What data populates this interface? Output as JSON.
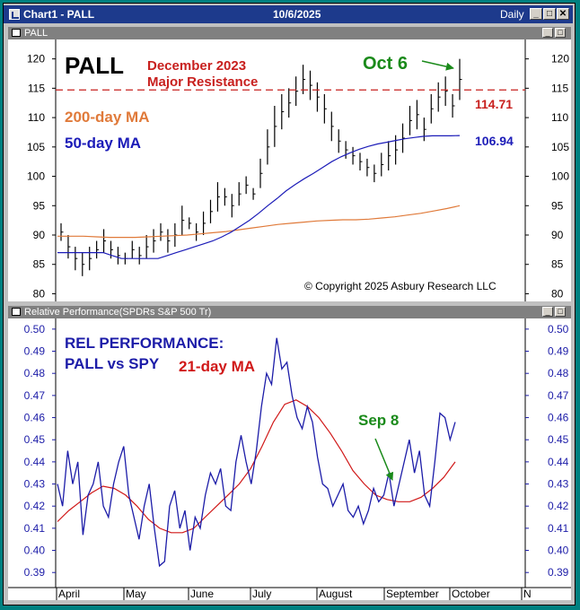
{
  "window": {
    "title": "Chart1 - PALL",
    "date": "10/6/2025",
    "period": "Daily",
    "buttons": [
      "_",
      "□",
      "✕"
    ]
  },
  "colors": {
    "title_bar": "#1d3a8c",
    "price_bars": "#000000",
    "ma50": "#1c1cb8",
    "ma200": "#e07a3a",
    "resistance": "#c8201e",
    "rel_perf": "#1c1ca8",
    "rel_ma": "#d01818",
    "green": "#1a8a1a"
  },
  "chart_data": [
    {
      "type": "bar",
      "panel": "PALL",
      "title": "PALL",
      "ylim": [
        79,
        123
      ],
      "y_ticks": [
        120,
        115,
        110,
        105,
        100,
        95,
        90,
        85,
        80
      ],
      "annotations": {
        "resistance_title": "December 2023",
        "resistance_subtitle": "Major Resistance",
        "ma200_label": "200-day MA",
        "ma50_label": "50-day MA",
        "oct6_label": "Oct 6",
        "resistance_value": "114.71",
        "ma50_value": "106.94",
        "copyright": "© Copyright 2025 Asbury Research LLC"
      },
      "resistance_level": 114.71,
      "series": [
        {
          "name": "PALL",
          "kind": "hl",
          "values": [
            [
              89,
              92
            ],
            [
              86,
              90
            ],
            [
              84,
              88
            ],
            [
              83,
              87
            ],
            [
              84,
              88
            ],
            [
              86,
              89
            ],
            [
              87,
              91
            ],
            [
              86,
              89
            ],
            [
              85,
              88
            ],
            [
              85,
              87
            ],
            [
              86,
              89
            ],
            [
              85,
              88
            ],
            [
              86,
              90
            ],
            [
              87,
              91
            ],
            [
              89,
              92
            ],
            [
              87,
              91
            ],
            [
              88,
              92
            ],
            [
              90,
              95
            ],
            [
              91,
              93
            ],
            [
              89,
              92
            ],
            [
              90,
              94
            ],
            [
              92,
              96
            ],
            [
              94,
              99
            ],
            [
              95,
              98
            ],
            [
              93,
              97
            ],
            [
              95,
              99
            ],
            [
              97,
              100
            ],
            [
              96,
              98
            ],
            [
              98,
              103
            ],
            [
              102,
              108
            ],
            [
              105,
              112
            ],
            [
              108,
              114
            ],
            [
              110,
              115
            ],
            [
              112,
              117
            ],
            [
              114,
              119
            ],
            [
              113,
              118
            ],
            [
              111,
              116
            ],
            [
              109,
              114
            ],
            [
              106,
              111
            ],
            [
              104,
              108
            ],
            [
              103,
              106
            ],
            [
              102,
              105
            ],
            [
              101,
              104
            ],
            [
              100,
              103
            ],
            [
              99,
              102
            ],
            [
              100,
              104
            ],
            [
              101,
              106
            ],
            [
              102,
              107
            ],
            [
              104,
              109
            ],
            [
              107,
              112
            ],
            [
              108,
              113
            ],
            [
              106,
              110
            ],
            [
              109,
              114
            ],
            [
              111,
              116
            ],
            [
              112,
              117
            ],
            [
              110,
              114
            ],
            [
              113,
              120
            ]
          ]
        },
        {
          "name": "50-day MA",
          "values": [
            87,
            87,
            87,
            87,
            87,
            87,
            86.5,
            86,
            86,
            86,
            86,
            86,
            86.5,
            87,
            87.5,
            88,
            88.5,
            89,
            89.7,
            90.5,
            91.5,
            92.5,
            93.7,
            95,
            96.2,
            97.5,
            98.6,
            99.6,
            100.5,
            101.5,
            102.5,
            103.3,
            104,
            104.6,
            105.1,
            105.5,
            105.8,
            106.1,
            106.4,
            106.6,
            106.8,
            106.9,
            106.9,
            106.9,
            106.94
          ]
        },
        {
          "name": "200-day MA",
          "values": [
            89.8,
            89.8,
            89.8,
            89.7,
            89.6,
            89.6,
            89.6,
            89.7,
            89.8,
            89.9,
            90,
            90.2,
            90.4,
            90.6,
            90.9,
            91.2,
            91.5,
            91.8,
            92,
            92.2,
            92.4,
            92.5,
            92.6,
            92.6,
            92.7,
            92.9,
            93.1,
            93.4,
            93.7,
            94.1,
            94.5,
            95
          ]
        }
      ]
    },
    {
      "type": "line",
      "panel": "Relative Performance",
      "title": "Relative Performance(SPDRs S&P 500 Tr)",
      "ylim": [
        0.384,
        0.504
      ],
      "y_ticks": [
        0.5,
        0.49,
        0.48,
        0.47,
        0.46,
        0.45,
        0.44,
        0.43,
        0.42,
        0.41,
        0.4,
        0.39
      ],
      "x_labels": [
        "April",
        "May",
        "June",
        "July",
        "August",
        "September",
        "October",
        "N"
      ],
      "annotations": {
        "heading_line1": "REL PERFORMANCE:",
        "heading_line2": "PALL vs SPY",
        "ma_label": "21-day MA",
        "sep8_label": "Sep 8"
      },
      "series": [
        {
          "name": "REL PERFORMANCE: PALL vs SPY",
          "values": [
            0.43,
            0.42,
            0.445,
            0.43,
            0.44,
            0.407,
            0.425,
            0.43,
            0.44,
            0.42,
            0.415,
            0.43,
            0.44,
            0.447,
            0.425,
            0.415,
            0.405,
            0.42,
            0.43,
            0.41,
            0.393,
            0.395,
            0.42,
            0.427,
            0.41,
            0.418,
            0.4,
            0.415,
            0.41,
            0.425,
            0.435,
            0.43,
            0.437,
            0.42,
            0.418,
            0.44,
            0.452,
            0.44,
            0.43,
            0.445,
            0.465,
            0.48,
            0.475,
            0.496,
            0.482,
            0.485,
            0.47,
            0.46,
            0.455,
            0.465,
            0.458,
            0.442,
            0.43,
            0.428,
            0.42,
            0.425,
            0.43,
            0.418,
            0.415,
            0.42,
            0.412,
            0.418,
            0.428,
            0.422,
            0.425,
            0.435,
            0.42,
            0.43,
            0.44,
            0.45,
            0.435,
            0.445,
            0.425,
            0.42,
            0.44,
            0.462,
            0.46,
            0.45,
            0.458
          ]
        },
        {
          "name": "21-day MA",
          "values": [
            0.413,
            0.418,
            0.422,
            0.426,
            0.429,
            0.428,
            0.425,
            0.42,
            0.414,
            0.41,
            0.408,
            0.408,
            0.41,
            0.415,
            0.42,
            0.425,
            0.43,
            0.437,
            0.447,
            0.458,
            0.466,
            0.468,
            0.465,
            0.46,
            0.453,
            0.445,
            0.436,
            0.43,
            0.425,
            0.423,
            0.422,
            0.422,
            0.424,
            0.428,
            0.433,
            0.44
          ]
        }
      ]
    }
  ]
}
